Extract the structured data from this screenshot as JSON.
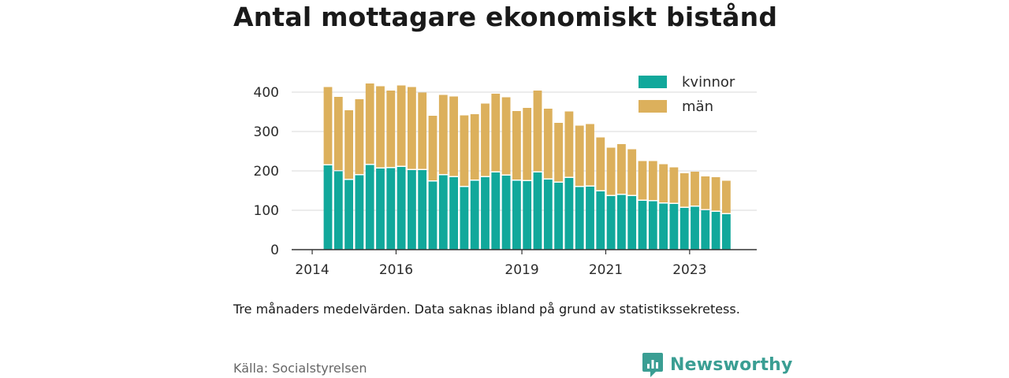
{
  "title": "Antal mottagare ekonomiskt bistånd",
  "note": "Tre månaders medelvärden. Data saknas ibland på grund av statistikssekretess.",
  "source": "Källa: Socialstyrelsen",
  "brand": {
    "name": "Newsworthy",
    "icon": "newsworthy-logo-icon",
    "color": "#3a9e93"
  },
  "colors": {
    "kvinnor": "#11a89b",
    "man": "#dcb05c",
    "grid": "#d9d9d9",
    "axis": "#333333"
  },
  "chart_data": {
    "type": "bar",
    "stacked": true,
    "ylim": [
      0,
      400
    ],
    "yticks": [
      0,
      100,
      200,
      300,
      400
    ],
    "x_tick_labels": [
      {
        "label": "2014",
        "index": -1
      },
      {
        "label": "2016",
        "index": 7
      },
      {
        "label": "2019",
        "index": 19
      },
      {
        "label": "2021",
        "index": 27
      },
      {
        "label": "2023",
        "index": 35
      }
    ],
    "legend": [
      "kvinnor",
      "män"
    ],
    "series": [
      {
        "name": "kvinnor",
        "values": [
          214,
          199,
          177,
          189,
          215,
          206,
          207,
          210,
          202,
          202,
          173,
          189,
          184,
          159,
          175,
          184,
          196,
          188,
          175,
          174,
          196,
          178,
          170,
          182,
          159,
          160,
          148,
          136,
          139,
          136,
          124,
          123,
          117,
          116,
          106,
          109,
          100,
          96,
          90
        ]
      },
      {
        "name": "män",
        "values": [
          199,
          189,
          177,
          193,
          207,
          209,
          197,
          207,
          211,
          197,
          167,
          204,
          205,
          182,
          169,
          187,
          200,
          199,
          177,
          186,
          208,
          180,
          152,
          169,
          156,
          159,
          137,
          123,
          129,
          119,
          101,
          102,
          100,
          93,
          88,
          89,
          86,
          88,
          85
        ]
      }
    ]
  }
}
